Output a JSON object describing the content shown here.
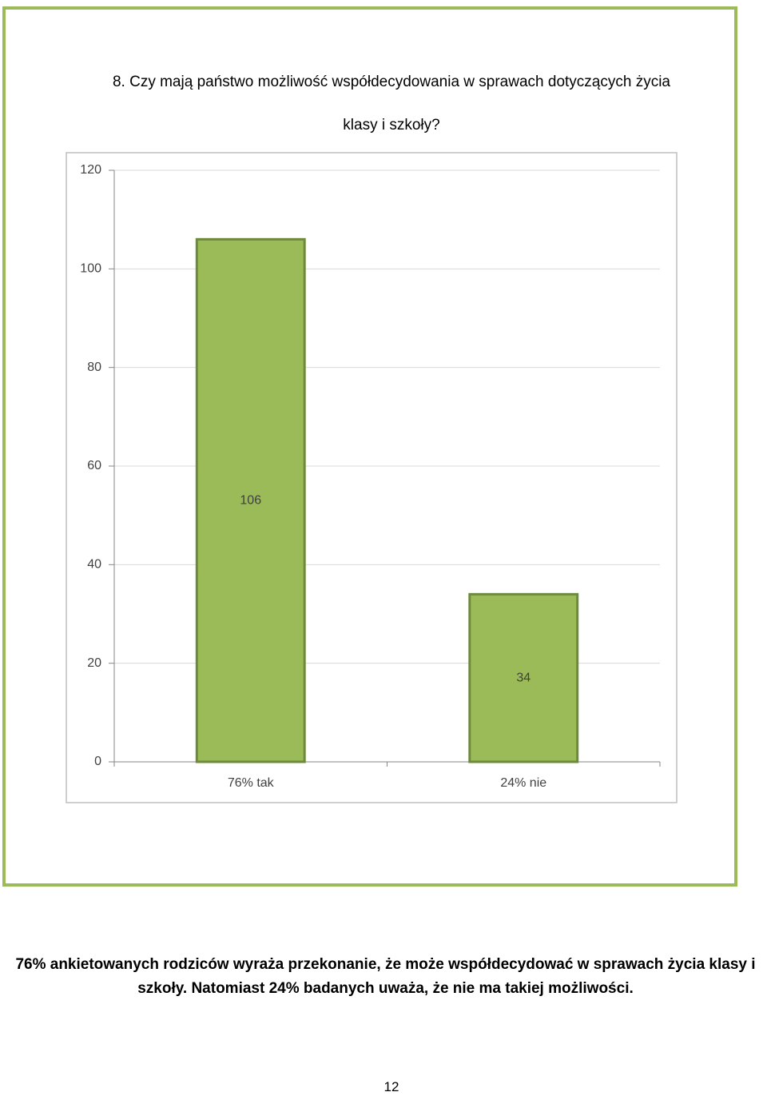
{
  "chart_data": {
    "type": "bar",
    "title": "8. Czy mają państwo możliwość współdecydowania w sprawach dotyczących życia klasy i szkoły?",
    "categories": [
      "76% tak",
      "24% nie"
    ],
    "values": [
      106,
      34
    ],
    "color": "#9bbb59",
    "ylim": [
      0,
      120
    ],
    "yticks": [
      0,
      20,
      40,
      60,
      80,
      100,
      120
    ],
    "grid": true
  },
  "caption": "76% ankietowanych rodziców wyraża przekonanie, że może współdecydować w sprawach życia klasy i szkoły. Natomiast 24% badanych uważa, że nie ma takiej możliwości.",
  "page_number": "12"
}
